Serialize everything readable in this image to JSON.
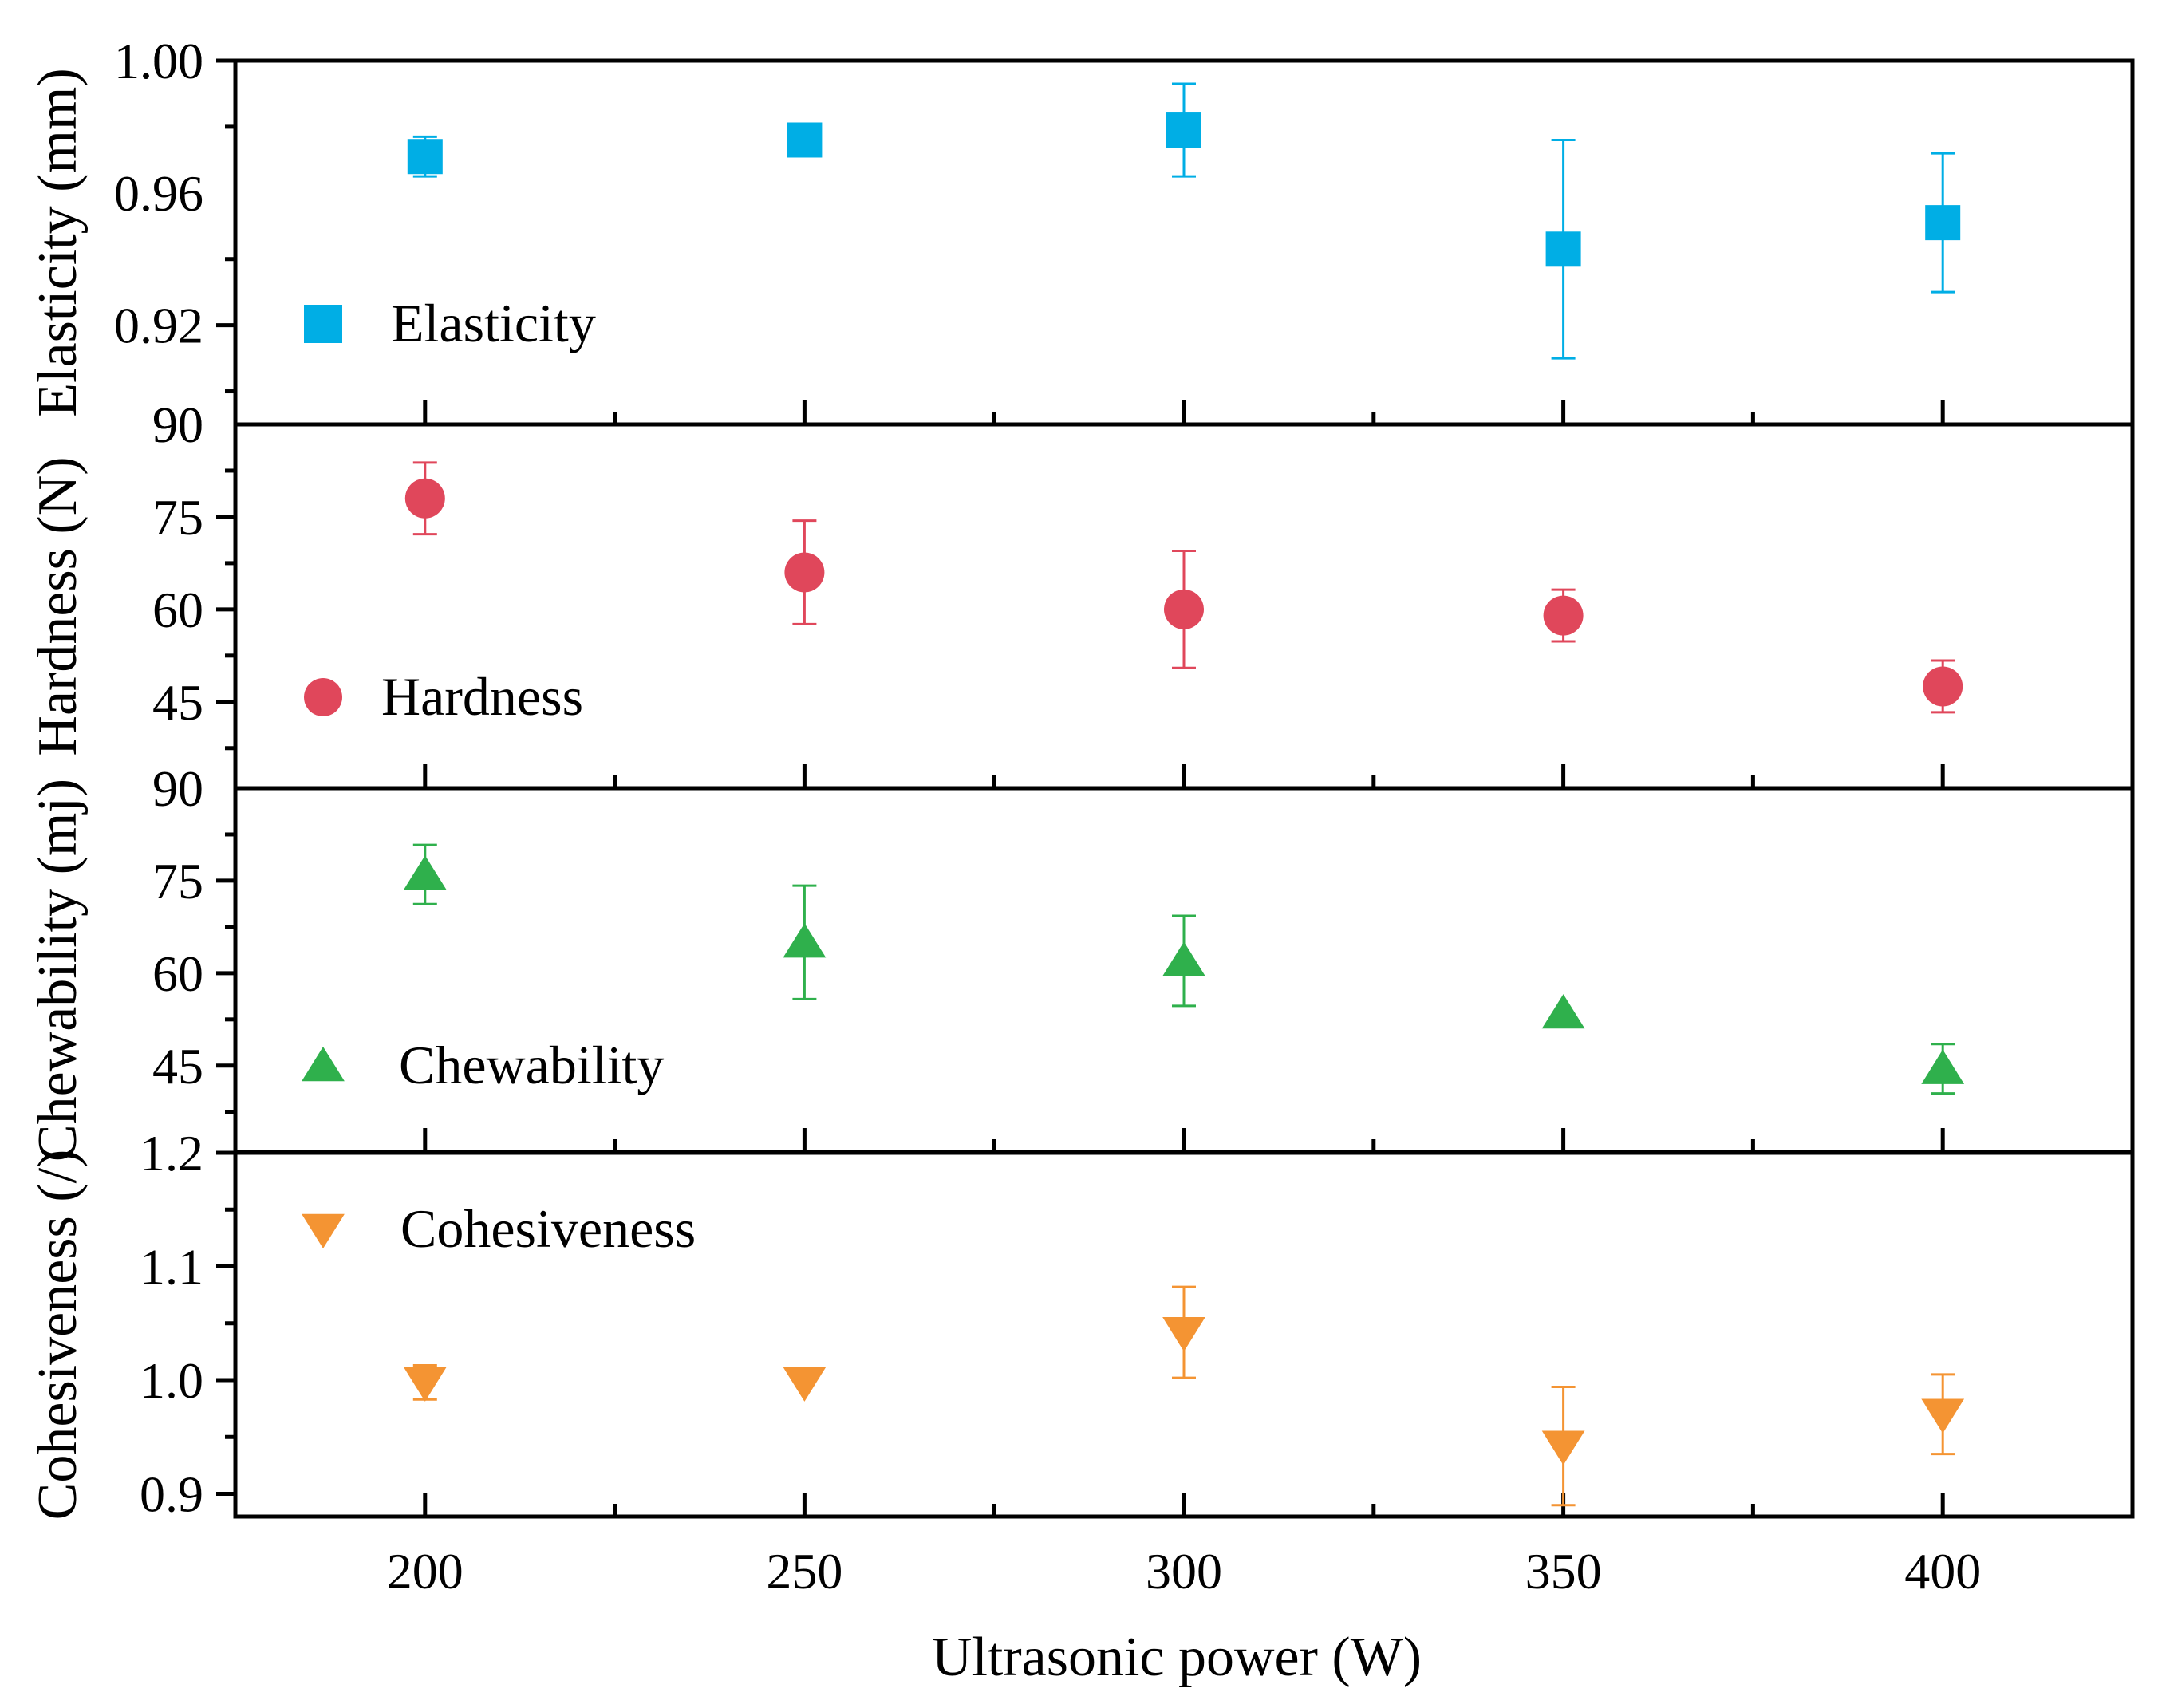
{
  "chart_data": {
    "type": "scatter",
    "x": [
      200,
      250,
      300,
      350,
      400
    ],
    "xlabel": "Ultrasonic power (W)",
    "xlim": [
      175,
      425
    ],
    "xticks": [
      200,
      250,
      300,
      350,
      400
    ],
    "xtick_labels": [
      "200",
      "250",
      "300",
      "350",
      "400"
    ],
    "panels": [
      {
        "id": "elasticity",
        "ylabel": "Elasticity (mm)",
        "ylim": [
          0.89,
          1.0
        ],
        "yticks": [
          0.92,
          0.96,
          1.0
        ],
        "ytick_labels": [
          "0.92",
          "0.96",
          "1.00"
        ],
        "top_label": "1.00",
        "bottom_label": "90",
        "series": {
          "name": "Elasticity",
          "marker": "square",
          "color": "#00aee5",
          "values": [
            0.971,
            0.976,
            0.979,
            0.943,
            0.951
          ],
          "errors": [
            0.006,
            0.0,
            0.014,
            0.033,
            0.021
          ]
        }
      },
      {
        "id": "hardness",
        "ylabel": "Hardness (N)",
        "ylim": [
          31,
          90
        ],
        "yticks": [
          45,
          60,
          75
        ],
        "ytick_labels": [
          "45",
          "60",
          "75"
        ],
        "top_label": "90",
        "bottom_label": "90",
        "series": {
          "name": "Hardness",
          "marker": "circle",
          "color": "#e0475b",
          "values": [
            78,
            66,
            60,
            59,
            47.5
          ],
          "errors": [
            5.8,
            8.4,
            9.5,
            4.2,
            4.2
          ]
        }
      },
      {
        "id": "chewability",
        "ylabel": "Chewability (mj)",
        "ylim": [
          31,
          90
        ],
        "yticks": [
          45,
          60,
          75
        ],
        "ytick_labels": [
          "45",
          "60",
          "75"
        ],
        "top_label": "90",
        "bottom_label": "1.2",
        "series": {
          "name": "Chewability",
          "marker": "triangle-up",
          "color": "#2fb04c",
          "values": [
            76,
            65,
            62,
            53.5,
            44.5
          ],
          "errors": [
            4.8,
            9.2,
            7.3,
            0.0,
            4.0
          ]
        }
      },
      {
        "id": "cohesiveness",
        "ylabel": "Cohesiveness (/)",
        "ylim": [
          0.88,
          1.2
        ],
        "yticks": [
          0.9,
          1.0,
          1.1
        ],
        "ytick_labels": [
          "0.9",
          "1.0",
          "1.1"
        ],
        "top_label": "1.2",
        "bottom_label": "",
        "series": {
          "name": "Cohesiveness",
          "marker": "triangle-down",
          "color": "#f49433",
          "values": [
            0.998,
            0.998,
            1.042,
            0.942,
            0.97
          ],
          "errors": [
            0.015,
            0.0,
            0.04,
            0.052,
            0.035
          ]
        }
      }
    ]
  }
}
